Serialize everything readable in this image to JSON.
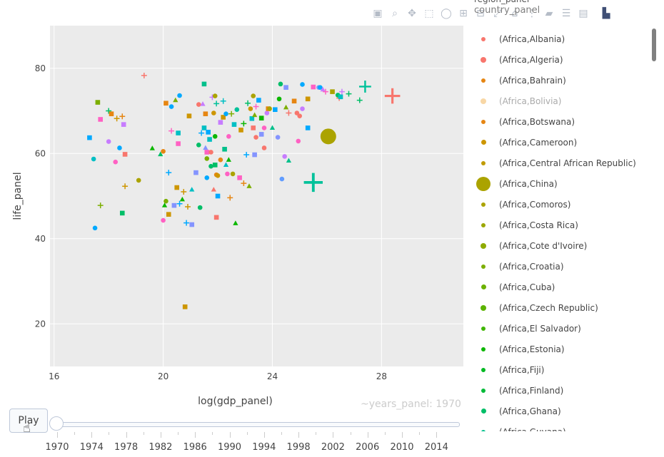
{
  "legend_title": "region_panel",
  "legend_subtitle": "country_panel",
  "chart_data": {
    "type": "scatter",
    "xlabel": "log(gdp_panel)",
    "ylabel": "life_panel",
    "xlim": [
      15.85,
      31
    ],
    "ylim": [
      10,
      90
    ],
    "xticks": [
      16,
      20,
      24,
      28
    ],
    "yticks": [
      20,
      40,
      60,
      80
    ],
    "grid": true,
    "legend_position": "right",
    "points": [
      {
        "x": 17.3,
        "y": 63.7,
        "c": "#00a9ff",
        "s": "square"
      },
      {
        "x": 17.45,
        "y": 58.7,
        "c": "#00bfc4",
        "s": "circle"
      },
      {
        "x": 17.5,
        "y": 42.5,
        "c": "#00a9ff",
        "s": "circle"
      },
      {
        "x": 17.6,
        "y": 72,
        "c": "#7cae00",
        "s": "square"
      },
      {
        "x": 17.7,
        "y": 68,
        "c": "#ff61c3",
        "s": "square"
      },
      {
        "x": 17.7,
        "y": 47.8,
        "c": "#7cae00",
        "s": "plus"
      },
      {
        "x": 18,
        "y": 70,
        "c": "#00be67",
        "s": "plus"
      },
      {
        "x": 18,
        "y": 62.8,
        "c": "#c77cff",
        "s": "circle"
      },
      {
        "x": 18.1,
        "y": 69.3,
        "c": "#e68613",
        "s": "square"
      },
      {
        "x": 18.25,
        "y": 58,
        "c": "#ff61c3",
        "s": "circle"
      },
      {
        "x": 18.3,
        "y": 68.2,
        "c": "#cd9600",
        "s": "plus"
      },
      {
        "x": 18.4,
        "y": 61.3,
        "c": "#00a9ff",
        "s": "circle"
      },
      {
        "x": 18.5,
        "y": 46,
        "c": "#00be67",
        "s": "square"
      },
      {
        "x": 18.5,
        "y": 68.7,
        "c": "#e68613",
        "s": "plus"
      },
      {
        "x": 18.55,
        "y": 66.8,
        "c": "#c77cff",
        "s": "square"
      },
      {
        "x": 18.6,
        "y": 52.3,
        "c": "#cd9600",
        "s": "plus"
      },
      {
        "x": 18.6,
        "y": 59.8,
        "c": "#f8766d",
        "s": "square"
      },
      {
        "x": 19.1,
        "y": 53.7,
        "c": "#aba300",
        "s": "circle"
      },
      {
        "x": 19.3,
        "y": 78.3,
        "c": "#f8766d",
        "s": "plus"
      },
      {
        "x": 19.6,
        "y": 61.2,
        "c": "#0cb702",
        "s": "triangle"
      },
      {
        "x": 19.9,
        "y": 59.8,
        "c": "#00be67",
        "s": "triangle"
      },
      {
        "x": 20,
        "y": 60.5,
        "c": "#e68613",
        "s": "circle"
      },
      {
        "x": 20,
        "y": 44.3,
        "c": "#ff61c3",
        "s": "circle"
      },
      {
        "x": 20.05,
        "y": 47.8,
        "c": "#0cb702",
        "s": "triangle"
      },
      {
        "x": 20.1,
        "y": 48.8,
        "c": "#7cae00",
        "s": "circle"
      },
      {
        "x": 20.1,
        "y": 71.8,
        "c": "#e68613",
        "s": "square"
      },
      {
        "x": 20.2,
        "y": 55.5,
        "c": "#00a9ff",
        "s": "plus"
      },
      {
        "x": 20.2,
        "y": 45.7,
        "c": "#cd9600",
        "s": "square"
      },
      {
        "x": 20.3,
        "y": 71,
        "c": "#00a9ff",
        "s": "circle"
      },
      {
        "x": 20.3,
        "y": 65.3,
        "c": "#ff61c3",
        "s": "plus"
      },
      {
        "x": 20.4,
        "y": 47.8,
        "c": "#8494ff",
        "s": "square"
      },
      {
        "x": 20.45,
        "y": 72.5,
        "c": "#7cae00",
        "s": "triangle"
      },
      {
        "x": 20.5,
        "y": 52,
        "c": "#cd9600",
        "s": "square"
      },
      {
        "x": 20.55,
        "y": 64.8,
        "c": "#00bfc4",
        "s": "square"
      },
      {
        "x": 20.55,
        "y": 62.3,
        "c": "#ff61c3",
        "s": "square"
      },
      {
        "x": 20.6,
        "y": 73.6,
        "c": "#00a9ff",
        "s": "circle"
      },
      {
        "x": 20.6,
        "y": 48.2,
        "c": "#00a9ff",
        "s": "plus"
      },
      {
        "x": 20.7,
        "y": 49.2,
        "c": "#0cb702",
        "s": "triangle"
      },
      {
        "x": 20.75,
        "y": 51,
        "c": "#cd9600",
        "s": "plus"
      },
      {
        "x": 20.8,
        "y": 24,
        "c": "#cd9600",
        "s": "square"
      },
      {
        "x": 20.85,
        "y": 43.7,
        "c": "#00a9ff",
        "s": "plus"
      },
      {
        "x": 20.9,
        "y": 47.5,
        "c": "#cd9600",
        "s": "plus"
      },
      {
        "x": 20.95,
        "y": 68.8,
        "c": "#cd9600",
        "s": "square"
      },
      {
        "x": 21.05,
        "y": 43.3,
        "c": "#8494ff",
        "s": "square"
      },
      {
        "x": 21.05,
        "y": 51.5,
        "c": "#00bfc4",
        "s": "triangle"
      },
      {
        "x": 21.2,
        "y": 55.5,
        "c": "#8494ff",
        "s": "square"
      },
      {
        "x": 21.3,
        "y": 62,
        "c": "#00be67",
        "s": "circle"
      },
      {
        "x": 21.3,
        "y": 71.5,
        "c": "#f8766d",
        "s": "circle"
      },
      {
        "x": 21.35,
        "y": 47.3,
        "c": "#00be67",
        "s": "circle"
      },
      {
        "x": 21.4,
        "y": 64.8,
        "c": "#00a9ff",
        "s": "plus"
      },
      {
        "x": 21.45,
        "y": 71.6,
        "c": "#c77cff",
        "s": "triangle"
      },
      {
        "x": 21.5,
        "y": 76.3,
        "c": "#00c08b",
        "s": "square"
      },
      {
        "x": 21.5,
        "y": 66,
        "c": "#00bfc4",
        "s": "square"
      },
      {
        "x": 21.55,
        "y": 69.3,
        "c": "#e68613",
        "s": "square"
      },
      {
        "x": 21.55,
        "y": 61.3,
        "c": "#8494ff",
        "s": "triangle"
      },
      {
        "x": 21.6,
        "y": 60.3,
        "c": "#ff61c3",
        "s": "square"
      },
      {
        "x": 21.6,
        "y": 54.3,
        "c": "#00a9ff",
        "s": "circle"
      },
      {
        "x": 21.6,
        "y": 58.8,
        "c": "#7cae00",
        "s": "circle"
      },
      {
        "x": 21.65,
        "y": 65,
        "c": "#00a9ff",
        "s": "square"
      },
      {
        "x": 21.7,
        "y": 63.3,
        "c": "#00bfc4",
        "s": "square"
      },
      {
        "x": 21.75,
        "y": 60.3,
        "c": "#f8766d",
        "s": "circle"
      },
      {
        "x": 21.75,
        "y": 57,
        "c": "#00be67",
        "s": "circle"
      },
      {
        "x": 21.8,
        "y": 73.2,
        "c": "#c77cff",
        "s": "plus"
      },
      {
        "x": 21.85,
        "y": 69.5,
        "c": "#cd9600",
        "s": "circle"
      },
      {
        "x": 21.85,
        "y": 51.5,
        "c": "#f8766d",
        "s": "triangle"
      },
      {
        "x": 21.9,
        "y": 73.5,
        "c": "#aba300",
        "s": "circle"
      },
      {
        "x": 21.9,
        "y": 64,
        "c": "#0cb702",
        "s": "circle"
      },
      {
        "x": 21.9,
        "y": 57.3,
        "c": "#00be67",
        "s": "square"
      },
      {
        "x": 21.95,
        "y": 55,
        "c": "#e68613",
        "s": "circle"
      },
      {
        "x": 21.95,
        "y": 45,
        "c": "#f8766d",
        "s": "square"
      },
      {
        "x": 21.95,
        "y": 71.7,
        "c": "#00c19a",
        "s": "plus"
      },
      {
        "x": 22.0,
        "y": 50,
        "c": "#00a9ff",
        "s": "square"
      },
      {
        "x": 22.0,
        "y": 54.8,
        "c": "#cd9600",
        "s": "circle"
      },
      {
        "x": 22.1,
        "y": 58.5,
        "c": "#e68613",
        "s": "circle"
      },
      {
        "x": 22.1,
        "y": 67.3,
        "c": "#c77cff",
        "s": "square"
      },
      {
        "x": 22.2,
        "y": 72.3,
        "c": "#00bfc4",
        "s": "plus"
      },
      {
        "x": 22.2,
        "y": 68.5,
        "c": "#cd9600",
        "s": "square"
      },
      {
        "x": 22.25,
        "y": 61,
        "c": "#00c08b",
        "s": "square"
      },
      {
        "x": 22.3,
        "y": 69.3,
        "c": "#00a9ff",
        "s": "circle"
      },
      {
        "x": 22.3,
        "y": 57.3,
        "c": "#00bfc4",
        "s": "triangle"
      },
      {
        "x": 22.35,
        "y": 55.2,
        "c": "#ff61c3",
        "s": "circle"
      },
      {
        "x": 22.4,
        "y": 64,
        "c": "#ff61c3",
        "s": "circle"
      },
      {
        "x": 22.4,
        "y": 58.5,
        "c": "#0cb702",
        "s": "triangle"
      },
      {
        "x": 22.45,
        "y": 49.6,
        "c": "#e68613",
        "s": "plus"
      },
      {
        "x": 22.5,
        "y": 69.3,
        "c": "#7cae00",
        "s": "plus"
      },
      {
        "x": 22.55,
        "y": 55.2,
        "c": "#aba300",
        "s": "circle"
      },
      {
        "x": 22.6,
        "y": 66.8,
        "c": "#00bfc4",
        "s": "square"
      },
      {
        "x": 22.65,
        "y": 43.6,
        "c": "#0cb702",
        "s": "triangle"
      },
      {
        "x": 22.7,
        "y": 70.3,
        "c": "#00c19a",
        "s": "circle"
      },
      {
        "x": 22.8,
        "y": 54.3,
        "c": "#ff61c3",
        "s": "square"
      },
      {
        "x": 22.85,
        "y": 65.5,
        "c": "#cd9600",
        "s": "square"
      },
      {
        "x": 22.95,
        "y": 53,
        "c": "#e68613",
        "s": "plus"
      },
      {
        "x": 22.95,
        "y": 67,
        "c": "#0cb702",
        "s": "plus"
      },
      {
        "x": 23.05,
        "y": 59.7,
        "c": "#00a9ff",
        "s": "plus"
      },
      {
        "x": 23.1,
        "y": 71.8,
        "c": "#00be67",
        "s": "plus"
      },
      {
        "x": 23.15,
        "y": 52.3,
        "c": "#7cae00",
        "s": "triangle"
      },
      {
        "x": 23.2,
        "y": 70.5,
        "c": "#cd9600",
        "s": "circle"
      },
      {
        "x": 23.25,
        "y": 68.2,
        "c": "#00bfc4",
        "s": "square"
      },
      {
        "x": 23.3,
        "y": 66,
        "c": "#f8766d",
        "s": "square"
      },
      {
        "x": 23.3,
        "y": 73.5,
        "c": "#aba300",
        "s": "circle"
      },
      {
        "x": 23.35,
        "y": 59.7,
        "c": "#8494ff",
        "s": "square"
      },
      {
        "x": 23.35,
        "y": 69,
        "c": "#7cae00",
        "s": "triangle"
      },
      {
        "x": 23.4,
        "y": 71,
        "c": "#ff61c3",
        "s": "plus"
      },
      {
        "x": 23.4,
        "y": 63.8,
        "c": "#f8766d",
        "s": "circle"
      },
      {
        "x": 23.5,
        "y": 72.5,
        "c": "#00a9ff",
        "s": "square"
      },
      {
        "x": 23.6,
        "y": 64.5,
        "c": "#8494ff",
        "s": "square"
      },
      {
        "x": 23.6,
        "y": 68.3,
        "c": "#0cb702",
        "s": "square"
      },
      {
        "x": 23.7,
        "y": 66,
        "c": "#ff61c3",
        "s": "circle"
      },
      {
        "x": 23.7,
        "y": 61.3,
        "c": "#f8766d",
        "s": "circle"
      },
      {
        "x": 23.8,
        "y": 69.5,
        "c": "#c77cff",
        "s": "circle"
      },
      {
        "x": 23.85,
        "y": 70.5,
        "c": "#e68613",
        "s": "square"
      },
      {
        "x": 23.9,
        "y": 70.5,
        "c": "#aba300",
        "s": "circle"
      },
      {
        "x": 24,
        "y": 66,
        "c": "#00c08b",
        "s": "triangle"
      },
      {
        "x": 24.1,
        "y": 70.3,
        "c": "#00a9ff",
        "s": "square"
      },
      {
        "x": 24.2,
        "y": 63.8,
        "c": "#8494ff",
        "s": "circle"
      },
      {
        "x": 24.25,
        "y": 72.8,
        "c": "#0cb702",
        "s": "circle"
      },
      {
        "x": 24.3,
        "y": 76.3,
        "c": "#00be67",
        "s": "circle"
      },
      {
        "x": 24.35,
        "y": 54,
        "c": "#619cff",
        "s": "circle"
      },
      {
        "x": 24.45,
        "y": 59.3,
        "c": "#c77cff",
        "s": "circle"
      },
      {
        "x": 24.5,
        "y": 70.8,
        "c": "#7cae00",
        "s": "triangle"
      },
      {
        "x": 24.5,
        "y": 75.5,
        "c": "#8494ff",
        "s": "square"
      },
      {
        "x": 24.6,
        "y": 69.5,
        "c": "#f8766d",
        "s": "plus"
      },
      {
        "x": 24.6,
        "y": 58.3,
        "c": "#00c08b",
        "s": "triangle"
      },
      {
        "x": 24.8,
        "y": 72.3,
        "c": "#e68613",
        "s": "square"
      },
      {
        "x": 24.9,
        "y": 69.5,
        "c": "#f8766d",
        "s": "circle"
      },
      {
        "x": 24.95,
        "y": 62.9,
        "c": "#ff61c3",
        "s": "circle"
      },
      {
        "x": 25,
        "y": 68.8,
        "c": "#f8766d",
        "s": "circle"
      },
      {
        "x": 25.1,
        "y": 70.5,
        "c": "#c77cff",
        "s": "circle"
      },
      {
        "x": 25.1,
        "y": 76.2,
        "c": "#00a9ff",
        "s": "circle"
      },
      {
        "x": 25.3,
        "y": 66,
        "c": "#00a9ff",
        "s": "square"
      },
      {
        "x": 25.3,
        "y": 72.8,
        "c": "#cd9600",
        "s": "square"
      },
      {
        "x": 25.5,
        "y": 75.6,
        "c": "#ff61c3",
        "s": "square"
      },
      {
        "x": 25.5,
        "y": 53.2,
        "c": "#00c19a",
        "s": "plus"
      },
      {
        "x": 25.7,
        "y": 75.5,
        "c": "#8494ff",
        "s": "circle"
      },
      {
        "x": 25.75,
        "y": 75.5,
        "c": "#00a9ff",
        "s": "circle"
      },
      {
        "x": 25.85,
        "y": 75,
        "c": "#c77cff",
        "s": "triangle"
      },
      {
        "x": 25.95,
        "y": 74.5,
        "c": "#ff61c3",
        "s": "plus"
      },
      {
        "x": 26.1,
        "y": 64,
        "c": "#aba300",
        "s": "circle"
      },
      {
        "x": 26.2,
        "y": 74.5,
        "c": "#aba300",
        "s": "square"
      },
      {
        "x": 26.4,
        "y": 73.7,
        "c": "#00be67",
        "s": "circle"
      },
      {
        "x": 26.45,
        "y": 73,
        "c": "#f8766d",
        "s": "plus"
      },
      {
        "x": 26.5,
        "y": 73.3,
        "c": "#00bfc4",
        "s": "square"
      },
      {
        "x": 26.55,
        "y": 74.5,
        "c": "#c77cff",
        "s": "plus"
      },
      {
        "x": 26.8,
        "y": 74,
        "c": "#00be67",
        "s": "plus"
      },
      {
        "x": 27.2,
        "y": 72.5,
        "c": "#00be67",
        "s": "plus"
      },
      {
        "x": 27.4,
        "y": 75.7,
        "c": "#00c19a",
        "s": "plus"
      },
      {
        "x": 28.4,
        "y": 73.5,
        "c": "#f8766d",
        "s": "plus"
      }
    ],
    "emphasized_points": [
      {
        "x": 26.05,
        "y": 64,
        "c": "#aba300",
        "s": "circle",
        "r": 11
      },
      {
        "x": 25.5,
        "y": 53.2,
        "c": "#00c19a",
        "s": "plus",
        "r": 11
      },
      {
        "x": 28.4,
        "y": 73.5,
        "c": "#f8766d",
        "s": "plus",
        "r": 9
      },
      {
        "x": 27.4,
        "y": 75.7,
        "c": "#00c19a",
        "s": "plus",
        "r": 7
      }
    ]
  },
  "legend": [
    {
      "label": "(Africa,Albania)",
      "color": "#f8766d",
      "size": 6,
      "faded": false
    },
    {
      "label": "(Africa,Algeria)",
      "color": "#f8766d",
      "size": 8,
      "faded": false
    },
    {
      "label": "(Africa,Bahrain)",
      "color": "#e68613",
      "size": 6,
      "faded": false
    },
    {
      "label": "(Africa,Bolivia)",
      "color": "#f8d7a5",
      "size": 8,
      "faded": true
    },
    {
      "label": "(Africa,Botswana)",
      "color": "#e68613",
      "size": 6,
      "faded": false
    },
    {
      "label": "(Africa,Cameroon)",
      "color": "#cd9600",
      "size": 7,
      "faded": false
    },
    {
      "label": "(Africa,Central African Republic)",
      "color": "#c09b00",
      "size": 6,
      "faded": false
    },
    {
      "label": "(Africa,China)",
      "color": "#aba300",
      "size": 20,
      "faded": false
    },
    {
      "label": "(Africa,Comoros)",
      "color": "#aba300",
      "size": 6,
      "faded": false
    },
    {
      "label": "(Africa,Costa Rica)",
      "color": "#9ca700",
      "size": 6,
      "faded": false
    },
    {
      "label": "(Africa,Cote d'Ivoire)",
      "color": "#8fab00",
      "size": 8,
      "faded": false
    },
    {
      "label": "(Africa,Croatia)",
      "color": "#7cae00",
      "size": 6,
      "faded": false
    },
    {
      "label": "(Africa,Cuba)",
      "color": "#6bb100",
      "size": 7,
      "faded": false
    },
    {
      "label": "(Africa,Czech Republic)",
      "color": "#5bb300",
      "size": 8,
      "faded": false
    },
    {
      "label": "(Africa,El Salvador)",
      "color": "#3fb600",
      "size": 6,
      "faded": false
    },
    {
      "label": "(Africa,Estonia)",
      "color": "#0cb702",
      "size": 6,
      "faded": false
    },
    {
      "label": "(Africa,Fiji)",
      "color": "#00b922",
      "size": 6,
      "faded": false
    },
    {
      "label": "(Africa,Finland)",
      "color": "#00ba38",
      "size": 6,
      "faded": false
    },
    {
      "label": "(Africa,Ghana)",
      "color": "#00be67",
      "size": 7,
      "faded": false
    },
    {
      "label": "(Africa,Guyana)",
      "color": "#00c08b",
      "size": 6,
      "faded": false
    }
  ],
  "slider": {
    "play_label": "Play",
    "current_value": "~years_panel: 1970",
    "years": [
      "1970",
      "1974",
      "1978",
      "1982",
      "1986",
      "1990",
      "1994",
      "1998",
      "2002",
      "2006",
      "2010",
      "2014"
    ]
  },
  "modebar": [
    {
      "name": "camera-icon",
      "glyph": "▣"
    },
    {
      "name": "zoom-icon",
      "glyph": "⌕"
    },
    {
      "name": "pan-icon",
      "glyph": "✥"
    },
    {
      "name": "box-select-icon",
      "glyph": "⬚"
    },
    {
      "name": "lasso-icon",
      "glyph": "◯"
    },
    {
      "name": "zoom-in-icon",
      "glyph": "⊞"
    },
    {
      "name": "zoom-out-icon",
      "glyph": "⊟"
    },
    {
      "name": "autoscale-icon",
      "glyph": "⤢"
    },
    {
      "name": "home-icon",
      "glyph": "⌂"
    },
    {
      "name": "spike-lines-icon",
      "glyph": "⋮"
    },
    {
      "name": "hover-closest-icon",
      "glyph": "▰"
    },
    {
      "name": "hover-compare-icon",
      "glyph": "☰"
    },
    {
      "name": "docs-icon",
      "glyph": "▤"
    },
    {
      "name": "plotly-logo-icon",
      "glyph": "▙"
    }
  ]
}
